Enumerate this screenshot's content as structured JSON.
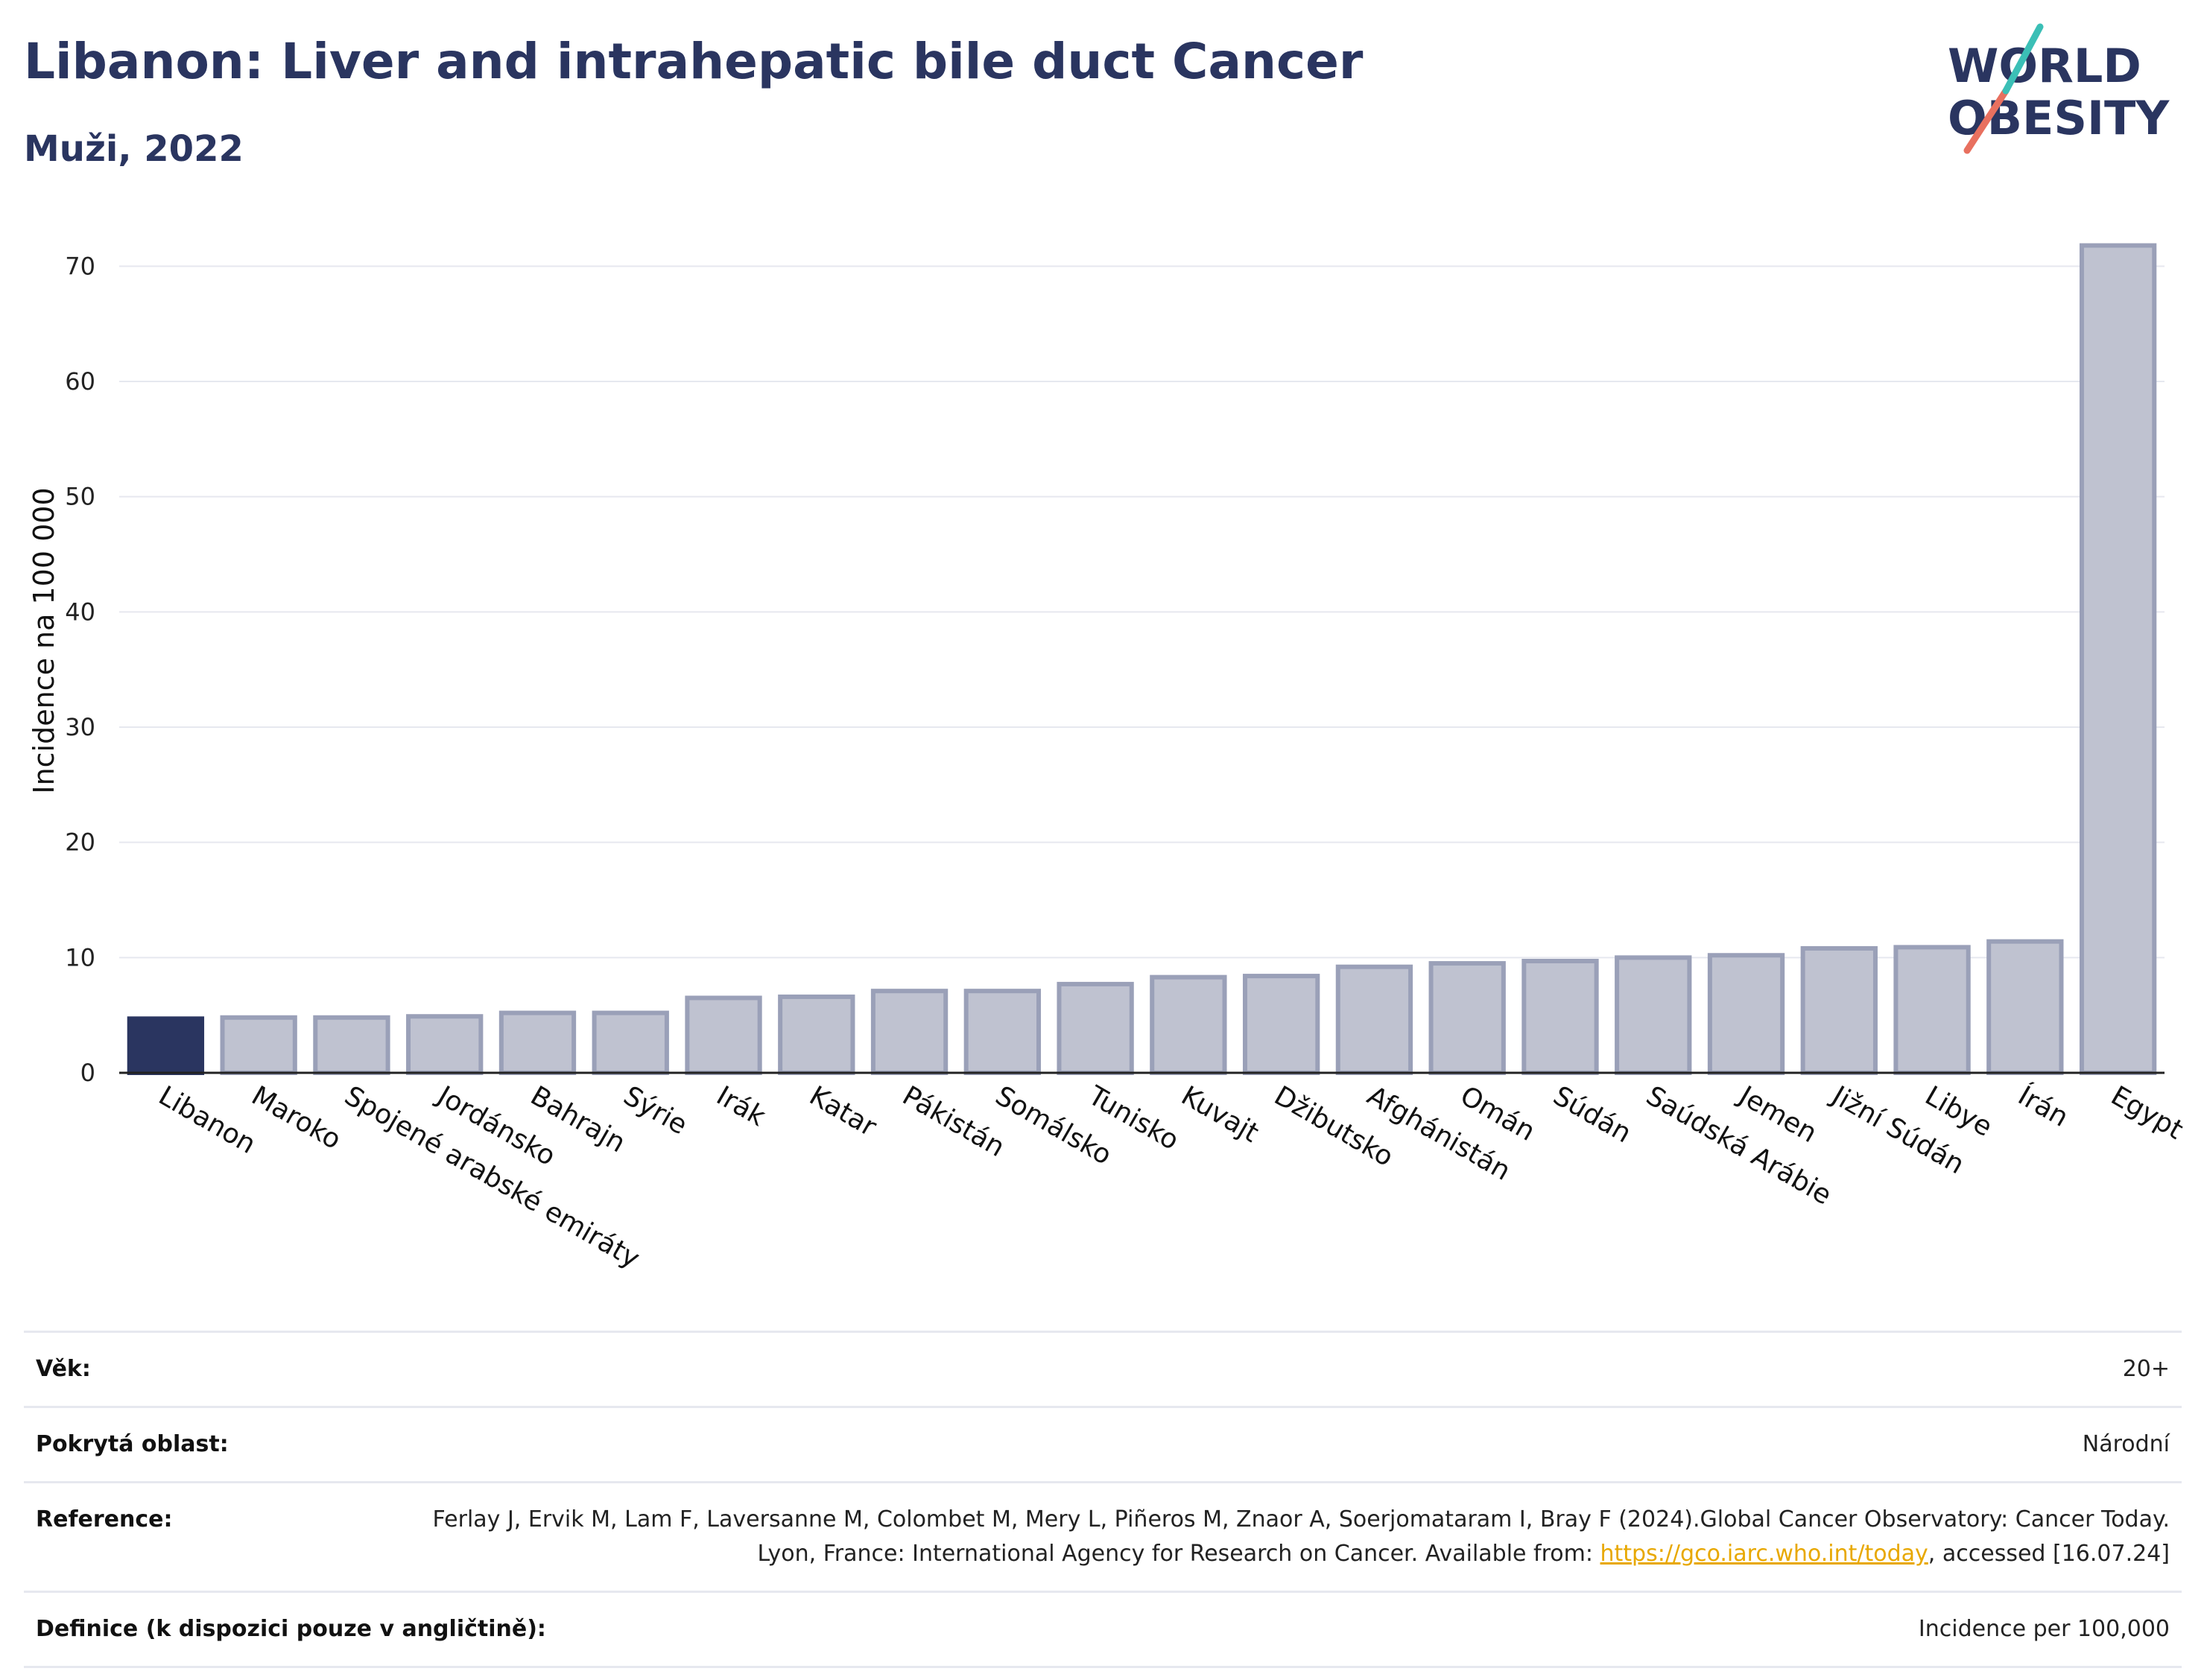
{
  "header": {
    "title": "Libanon: Liver and intrahepatic bile duct Cancer",
    "subtitle": "Muži, 2022"
  },
  "logo": {
    "line1": "WORLD",
    "line2": "OBESITY"
  },
  "colors": {
    "highlight": "#2a3560",
    "bar": "#bfc2d0",
    "bar_stroke": "#9aa0b8",
    "title": "#2a3560",
    "link": "#e8a800"
  },
  "chart_data": {
    "type": "bar",
    "ylabel": "Incidence na 100 000",
    "xlabel": "",
    "ylim": [
      0,
      75
    ],
    "yticks": [
      0,
      10,
      20,
      30,
      40,
      50,
      60,
      70
    ],
    "grid": true,
    "highlight_category": "Libanon",
    "categories": [
      "Libanon",
      "Maroko",
      "Spojené arabské emiráty",
      "Jordánsko",
      "Bahrajn",
      "Sýrie",
      "Irák",
      "Katar",
      "Pákistán",
      "Somálsko",
      "Tunisko",
      "Kuvajt",
      "Džibutsko",
      "Afghánistán",
      "Omán",
      "Súdán",
      "Saúdská Arábie",
      "Jemen",
      "Jižní Súdán",
      "Libye",
      "Írán",
      "Egypt"
    ],
    "values": [
      4.7,
      4.8,
      4.8,
      4.9,
      5.2,
      5.2,
      6.5,
      6.6,
      7.1,
      7.1,
      7.7,
      8.3,
      8.4,
      9.2,
      9.5,
      9.7,
      10.0,
      10.2,
      10.8,
      10.9,
      11.4,
      71.8
    ]
  },
  "meta": {
    "age_label": "Věk:",
    "age_value": "20+",
    "area_label": "Pokrytá oblast:",
    "area_value": "Národní",
    "ref_label": "Reference:",
    "ref_text_1": "Ferlay J, Ervik M, Lam F, Laversanne M, Colombet M, Mery L, Piñeros M, Znaor A, Soerjomataram I, Bray F (2024).Global Cancer Observatory: Cancer Today. Lyon, France: International Agency for Research on Cancer. Available from: ",
    "ref_link": "https://gco.iarc.who.int/today",
    "ref_text_2": ", accessed [16.07.24]",
    "def_label": "Definice (k dispozici pouze v angličtině):",
    "def_value": "Incidence per 100,000"
  }
}
